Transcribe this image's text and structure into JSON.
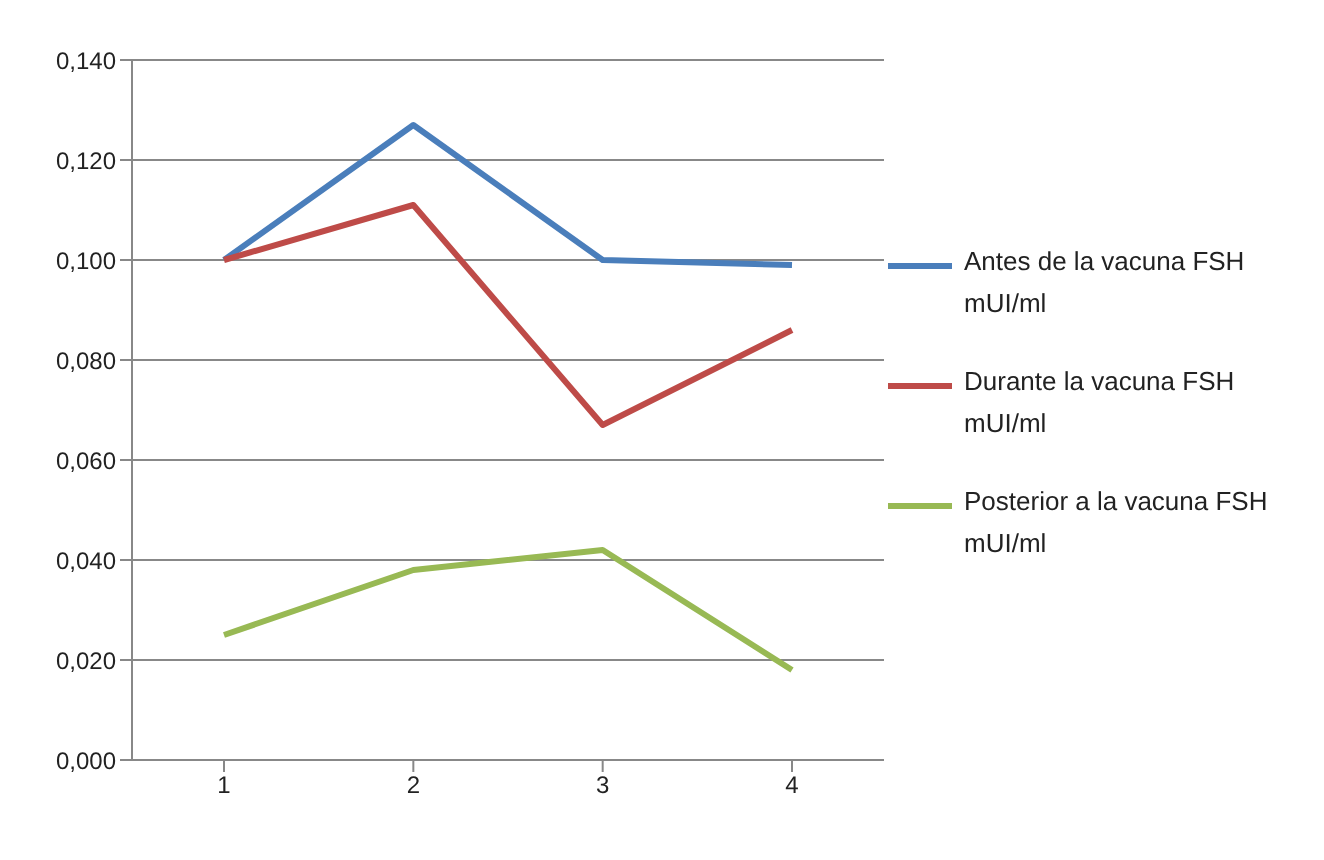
{
  "chart_data": {
    "type": "line",
    "categories": [
      "1",
      "2",
      "3",
      "4"
    ],
    "series": [
      {
        "name": "Antes de la vacuna FSH mUI/ml",
        "color": "#4a7ebb",
        "values": [
          0.1,
          0.127,
          0.1,
          0.099
        ]
      },
      {
        "name": "Durante la vacuna FSH mUI/ml",
        "color": "#be4b48",
        "values": [
          0.1,
          0.111,
          0.067,
          0.086
        ]
      },
      {
        "name": "Posterior a la vacuna FSH mUI/ml",
        "color": "#98b954",
        "values": [
          0.025,
          0.038,
          0.042,
          0.018
        ]
      }
    ],
    "ylim": [
      0,
      0.14
    ],
    "yticks": [
      {
        "value": 0,
        "label": "0,000"
      },
      {
        "value": 0.02,
        "label": "0,020"
      },
      {
        "value": 0.04,
        "label": "0,040"
      },
      {
        "value": 0.06,
        "label": "0,060"
      },
      {
        "value": 0.08,
        "label": "0,080"
      },
      {
        "value": 0.1,
        "label": "0,100"
      },
      {
        "value": 0.12,
        "label": "0,120"
      },
      {
        "value": 0.14,
        "label": "0,140"
      }
    ],
    "grid": "y",
    "legend": "right",
    "marker": "none",
    "line_style": "solid"
  }
}
